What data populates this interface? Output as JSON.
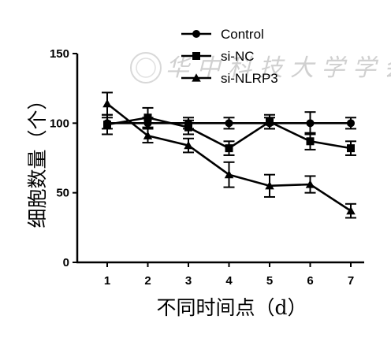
{
  "chart_data": {
    "type": "line",
    "x": [
      1,
      2,
      3,
      4,
      5,
      6,
      7
    ],
    "xticks": [
      "1",
      "2",
      "3",
      "4",
      "5",
      "6",
      "7"
    ],
    "yticks": [
      "0",
      "50",
      "100",
      "150"
    ],
    "ylim": [
      0,
      150
    ],
    "xlabel": "不同时间点（d）",
    "ylabel": "细胞数量（个）",
    "legend_position": "top-right",
    "grid": false,
    "series": [
      {
        "name": "Control",
        "marker": "circle",
        "values": [
          100,
          100,
          100,
          100,
          100,
          100,
          100
        ],
        "errors": [
          4,
          4,
          4,
          4,
          4,
          8,
          4
        ]
      },
      {
        "name": "si-NC",
        "marker": "square",
        "values": [
          99,
          104,
          97,
          82,
          101,
          87,
          82
        ],
        "errors": [
          7,
          7,
          5,
          5,
          5,
          6,
          5
        ]
      },
      {
        "name": "si-NLRP3",
        "marker": "triangle",
        "values": [
          114,
          91,
          84,
          63,
          55,
          56,
          37
        ],
        "errors": [
          8,
          5,
          5,
          9,
          8,
          6,
          5
        ]
      }
    ]
  },
  "watermark": "华 中 科 技 大 学 学 会",
  "colors": {
    "ink": "#000000",
    "watermark": "#d0d0d0"
  }
}
